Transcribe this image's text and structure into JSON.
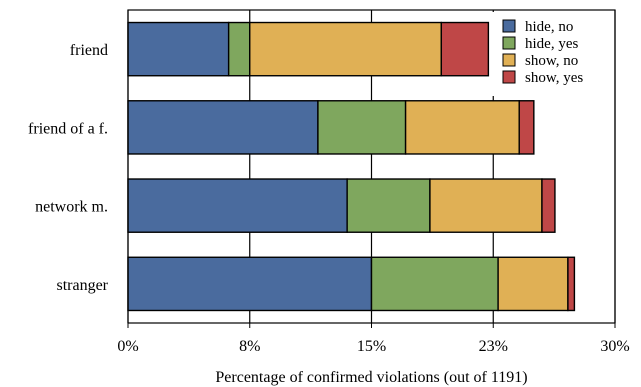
{
  "chart_data": {
    "type": "bar",
    "orientation": "horizontal",
    "stacked": true,
    "categories": [
      "friend",
      "friend of a f.",
      "network m.",
      "stranger"
    ],
    "series": [
      {
        "name": "hide, no",
        "color": "#4a6b9e",
        "values": [
          6.2,
          11.7,
          13.5,
          15.0
        ]
      },
      {
        "name": "hide, yes",
        "color": "#7fa75e",
        "values": [
          1.3,
          5.4,
          5.1,
          7.8
        ]
      },
      {
        "name": "show, no",
        "color": "#e0b055",
        "values": [
          11.8,
          7.0,
          6.9,
          4.3
        ]
      },
      {
        "name": "show, yes",
        "color": "#bf4747",
        "values": [
          2.9,
          0.9,
          0.8,
          0.4
        ]
      }
    ],
    "xlabel": "Percentage of confirmed violations (out of 1191)",
    "ylabel": "",
    "xlim": [
      0,
      30
    ],
    "xticks": [
      0,
      7.5,
      15,
      22.5,
      30
    ],
    "xtick_labels": [
      "0%",
      "8%",
      "15%",
      "23%",
      "30%"
    ],
    "grid": "vertical",
    "legend_position": "top-right"
  }
}
